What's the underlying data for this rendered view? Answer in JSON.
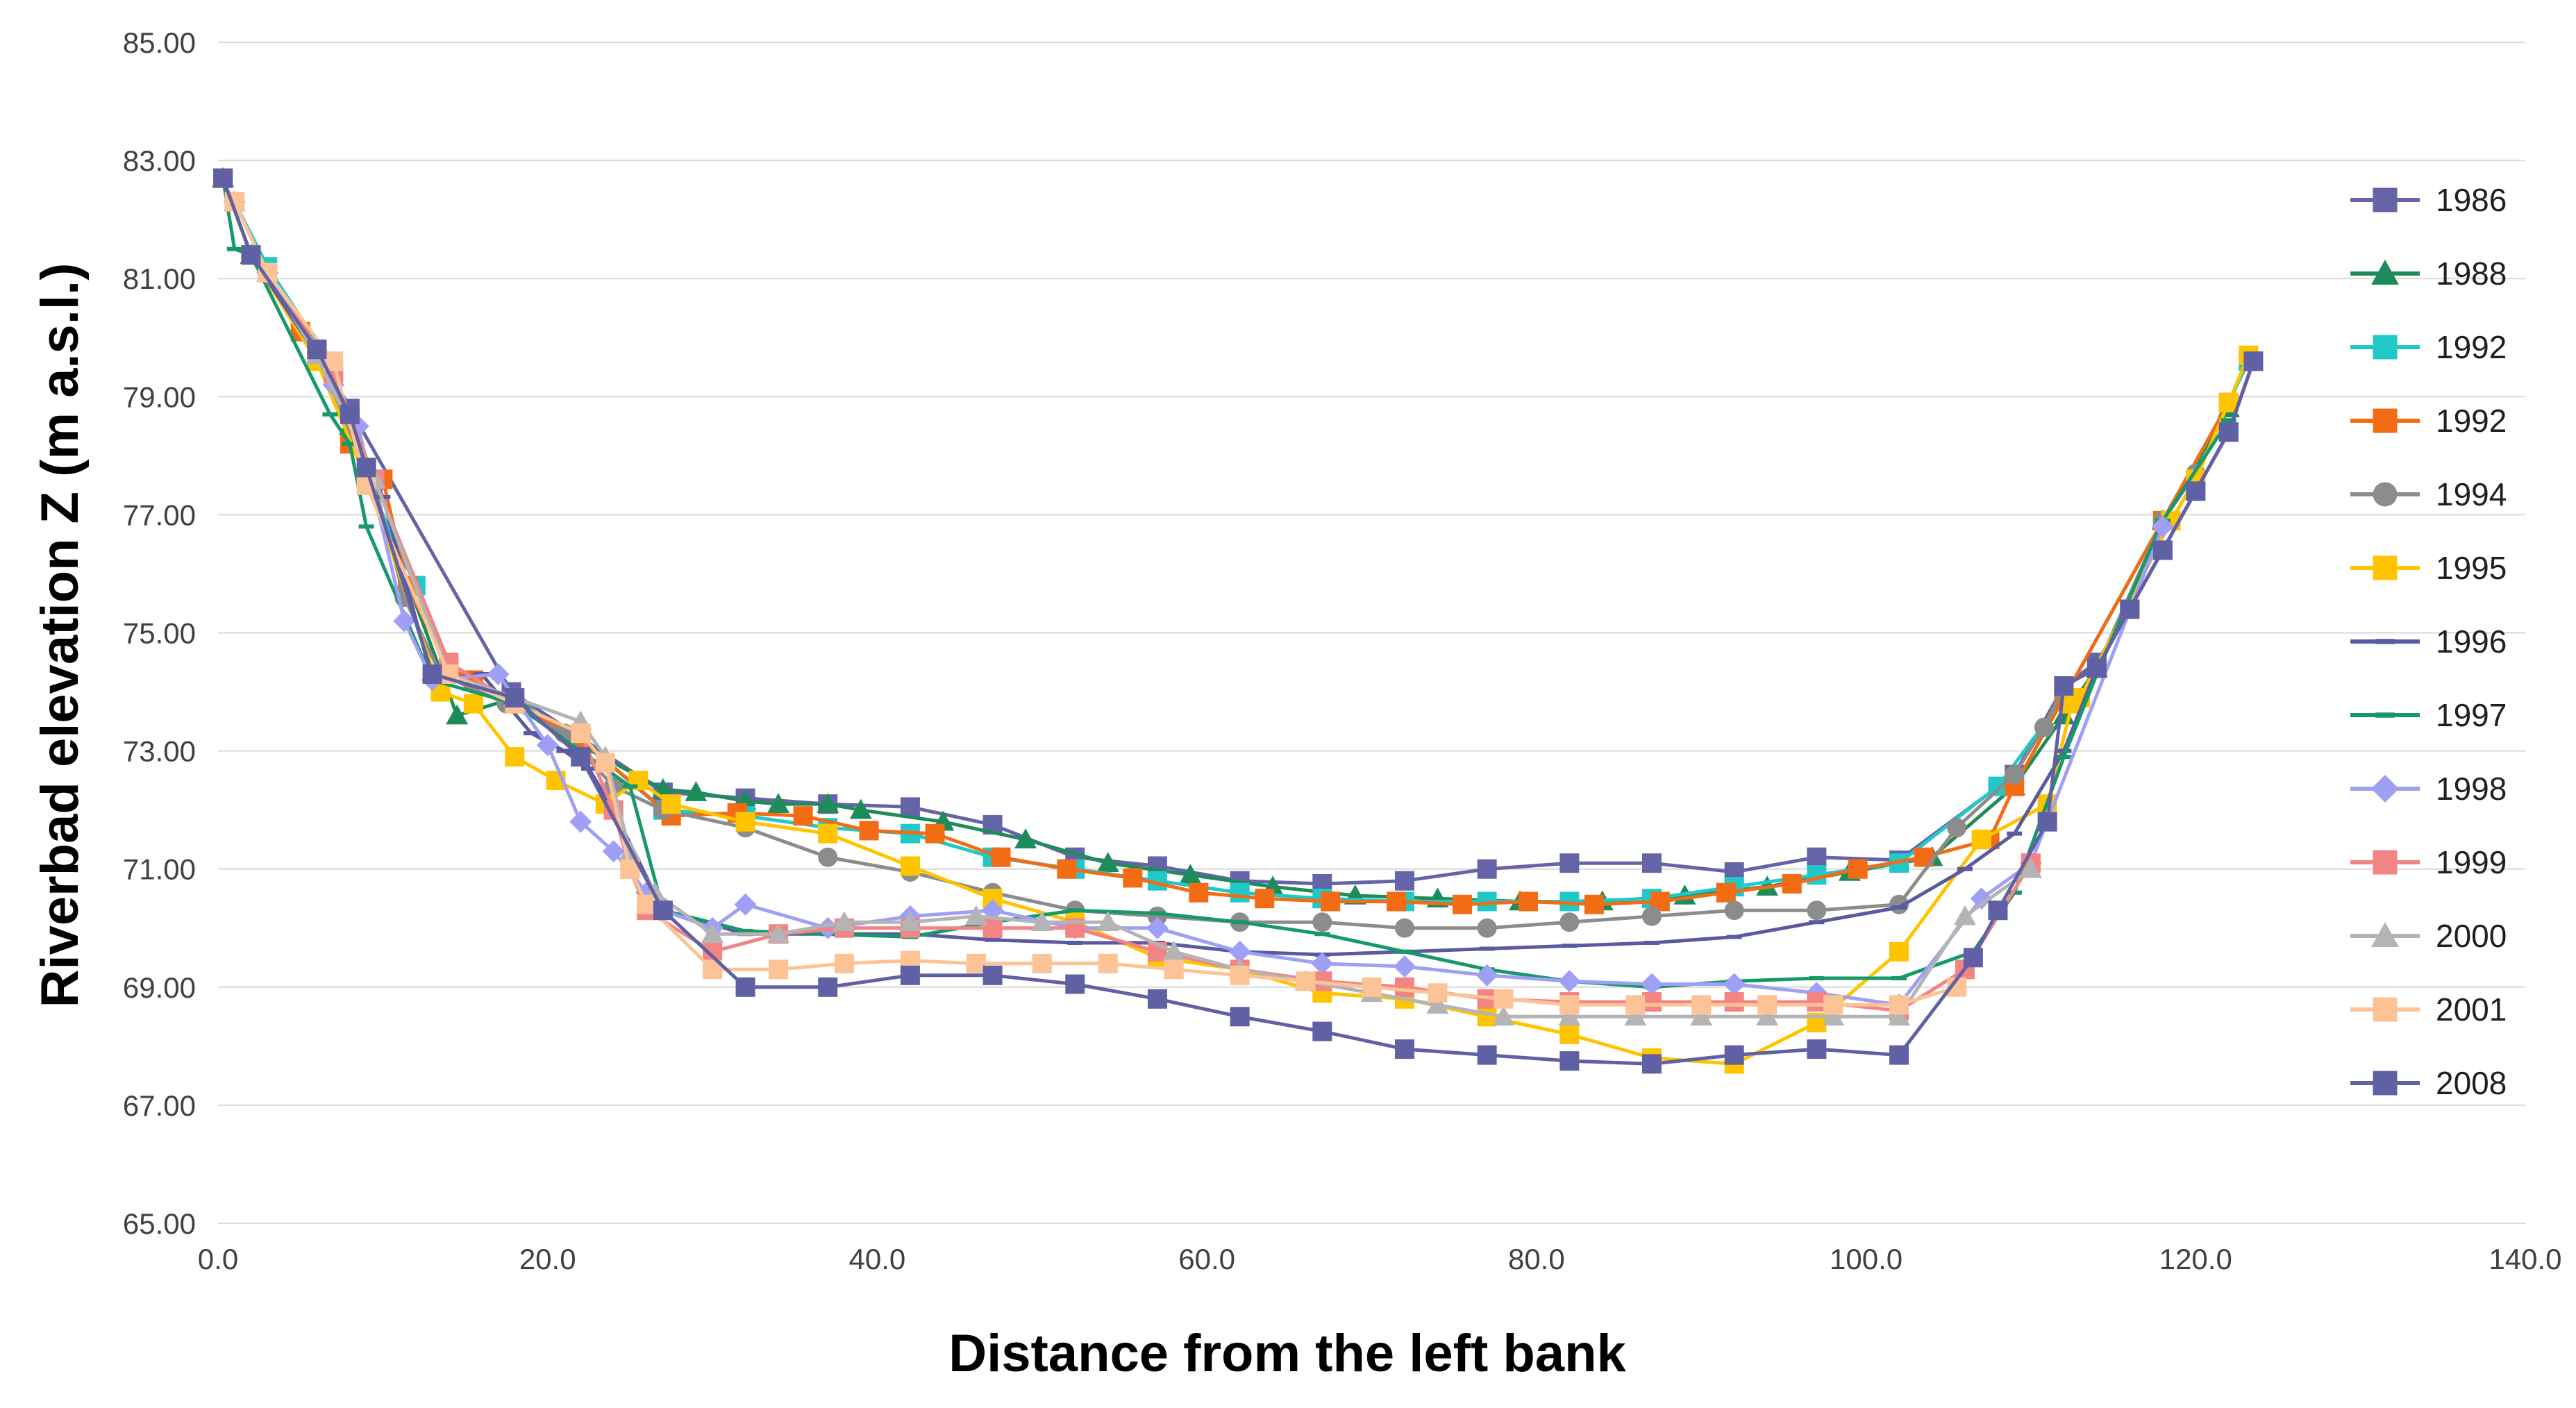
{
  "chart_data": {
    "type": "line",
    "title": "",
    "xlabel": "Distance from the left bank",
    "ylabel": "Riverbad elevation Z (m a.s.l.)",
    "xlim": [
      0,
      140
    ],
    "ylim": [
      65,
      85
    ],
    "x_ticks": [
      0,
      20,
      40,
      60,
      80,
      100,
      120,
      140
    ],
    "x_tick_labels": [
      "0.0",
      "20.0",
      "40.0",
      "60.0",
      "80.0",
      "100.0",
      "120.0",
      "140.0"
    ],
    "y_ticks": [
      65,
      67,
      69,
      71,
      73,
      75,
      77,
      79,
      81,
      83,
      85
    ],
    "y_tick_labels": [
      "65.00",
      "67.00",
      "69.00",
      "71.00",
      "73.00",
      "75.00",
      "77.00",
      "79.00",
      "81.00",
      "83.00",
      "85.00"
    ],
    "grid": "horizontal",
    "legend_position": "right",
    "series": [
      {
        "name": "1986",
        "color": "#6464a6",
        "marker": "square",
        "x": [
          0.3,
          2,
          6,
          8,
          17.8,
          27,
          32,
          37,
          42,
          47,
          52,
          57,
          62,
          67,
          72,
          77,
          82,
          87,
          92,
          97,
          102,
          109,
          112,
          114,
          116,
          118,
          120,
          122,
          123.5
        ],
        "y": [
          82.7,
          81.4,
          79.8,
          78.8,
          74,
          72.3,
          72.2,
          72.1,
          72.05,
          71.75,
          71.2,
          71.05,
          70.8,
          70.75,
          70.8,
          71,
          71.1,
          71.1,
          70.95,
          71.2,
          71.15,
          72.6,
          74.1,
          74.5,
          75.4,
          76.4,
          77.4,
          78.4,
          79.6
        ]
      },
      {
        "name": "1988",
        "color": "#1e8c5a",
        "marker": "triangle",
        "x": [
          0.3,
          2,
          6,
          8,
          14.5,
          18,
          22,
          27,
          29,
          32,
          34,
          37,
          39,
          44,
          49,
          54,
          59,
          64,
          69,
          74,
          79,
          84,
          89,
          94,
          99,
          104,
          109,
          112,
          114,
          118,
          122
        ],
        "y": [
          82.7,
          81.4,
          79.7,
          78.5,
          73.6,
          73.9,
          73.1,
          72.35,
          72.3,
          72.15,
          72.1,
          72.1,
          72.0,
          71.8,
          71.5,
          71.1,
          70.9,
          70.7,
          70.55,
          70.5,
          70.45,
          70.45,
          70.55,
          70.7,
          70.95,
          71.2,
          72.4,
          73.6,
          74.4,
          76.9,
          78.8
        ]
      },
      {
        "name": "1992",
        "color": "#22c8c8",
        "marker": "square",
        "x": [
          1,
          3,
          7,
          9,
          12,
          14,
          18,
          22,
          27,
          32,
          37,
          42,
          47,
          52,
          57,
          62,
          67,
          72,
          77,
          82,
          87,
          92,
          97,
          102,
          108,
          112,
          118,
          122,
          123.2
        ],
        "y": [
          82.3,
          81.2,
          79.5,
          77.6,
          75.8,
          74.3,
          73.8,
          73.2,
          72,
          71.9,
          71.7,
          71.6,
          71.2,
          71,
          70.8,
          70.6,
          70.5,
          70.45,
          70.45,
          70.45,
          70.5,
          70.7,
          70.9,
          71.1,
          72.4,
          73.9,
          76.9,
          78.9,
          79.6
        ]
      },
      {
        "name": "1992",
        "color": "#f26c15",
        "marker": "square",
        "x": [
          0.3,
          2,
          5,
          7,
          8,
          10,
          11.5,
          14,
          15.5,
          18,
          22,
          27.5,
          31.5,
          35.5,
          39.5,
          43.5,
          47.5,
          51.5,
          55.5,
          59.5,
          63.5,
          67.5,
          71.5,
          75.5,
          79.5,
          83.5,
          87.5,
          91.5,
          95.5,
          99.5,
          103.5,
          107.5,
          109,
          112,
          118,
          122
        ],
        "y": [
          82.7,
          81.4,
          80.1,
          79.4,
          78.2,
          77.6,
          75.8,
          74.4,
          74.2,
          73.8,
          73.2,
          71.9,
          71.95,
          71.9,
          71.65,
          71.6,
          71.2,
          71.0,
          70.85,
          70.6,
          70.5,
          70.45,
          70.45,
          70.4,
          70.45,
          70.4,
          70.45,
          70.6,
          70.75,
          71.0,
          71.2,
          71.5,
          72.4,
          73.9,
          76.9,
          78.9
        ]
      },
      {
        "name": "1994",
        "color": "#8c8c8c",
        "marker": "circle",
        "x": [
          0.3,
          2,
          6,
          9.5,
          11.3,
          13.5,
          17.5,
          21,
          24,
          27,
          32,
          37,
          42,
          47,
          52,
          57,
          62,
          67,
          72,
          77,
          82,
          87,
          92,
          97,
          102,
          105.5,
          109,
          110.8,
          112,
          114,
          118,
          120
        ],
        "y": [
          82.7,
          81.4,
          79.6,
          77.5,
          75.6,
          74.3,
          73.8,
          73.3,
          72.4,
          72.0,
          71.7,
          71.2,
          70.95,
          70.6,
          70.3,
          70.2,
          70.1,
          70.1,
          70.0,
          70.0,
          70.1,
          70.2,
          70.3,
          70.3,
          70.4,
          71.7,
          72.6,
          73.4,
          74.1,
          74.4,
          76.9,
          77.7
        ]
      },
      {
        "name": "1995",
        "color": "#ffc400",
        "marker": "square",
        "x": [
          0.3,
          2,
          6,
          9,
          13.5,
          15.5,
          18,
          20.5,
          23.5,
          25.5,
          27.5,
          32,
          37,
          42,
          47,
          52,
          57,
          62,
          67,
          72,
          77,
          82,
          87,
          92,
          97,
          102,
          107,
          111,
          112.5,
          113,
          118.5,
          120,
          122,
          123.2
        ],
        "y": [
          82.7,
          81.4,
          79.6,
          77.6,
          74.0,
          73.8,
          72.9,
          72.5,
          72.1,
          72.5,
          72.1,
          71.8,
          71.6,
          71.05,
          70.5,
          70.1,
          69.5,
          69.3,
          68.9,
          68.8,
          68.5,
          68.2,
          67.8,
          67.7,
          68.4,
          69.6,
          71.5,
          72.1,
          73.8,
          73.9,
          76.9,
          77.6,
          78.9,
          79.7
        ]
      },
      {
        "name": "1996",
        "color": "#5a5aa0",
        "marker": "dash",
        "x": [
          0.3,
          2,
          6,
          10,
          13,
          16,
          19,
          21,
          22.5,
          24,
          27,
          32,
          37,
          42,
          47,
          52,
          57,
          62,
          67,
          72,
          77,
          82,
          87,
          92,
          97,
          102,
          106,
          109,
          112,
          114,
          118,
          122,
          123.5
        ],
        "y": [
          82.7,
          81.4,
          79.7,
          77.3,
          74.2,
          74.3,
          73.3,
          73.0,
          72.7,
          72.0,
          70.3,
          69.9,
          69.9,
          69.9,
          69.8,
          69.75,
          69.75,
          69.6,
          69.55,
          69.6,
          69.65,
          69.7,
          69.75,
          69.85,
          70.1,
          70.35,
          71.0,
          71.6,
          73.0,
          74.4,
          76.4,
          78.4,
          79.6
        ]
      },
      {
        "name": "1997",
        "color": "#16996a",
        "marker": "dash",
        "x": [
          0.3,
          1,
          2,
          6.8,
          8,
          9,
          13,
          18,
          22,
          25,
          27,
          32,
          37,
          42,
          47,
          52,
          57,
          62,
          67,
          72,
          77,
          82,
          87,
          92,
          97,
          102,
          106.5,
          109,
          112,
          114,
          118,
          122
        ],
        "y": [
          82.7,
          81.5,
          81.4,
          78.7,
          78.2,
          76.8,
          74.2,
          73.8,
          73.0,
          72.4,
          70.3,
          69.95,
          69.9,
          69.85,
          70.1,
          70.3,
          70.25,
          70.1,
          69.9,
          69.6,
          69.3,
          69.1,
          69.0,
          69.1,
          69.15,
          69.15,
          69.6,
          70.6,
          72.9,
          74.3,
          76.9,
          78.6
        ]
      },
      {
        "name": "1998",
        "color": "#9f9ff5",
        "marker": "diamond",
        "x": [
          1,
          3,
          7,
          8.5,
          11.3,
          13,
          17,
          20,
          22,
          24,
          26,
          27,
          30,
          32,
          37,
          42,
          47,
          52,
          57,
          62,
          67,
          72,
          77,
          82,
          87,
          92,
          97,
          102,
          107,
          110,
          118
        ],
        "y": [
          82.3,
          81.1,
          79.2,
          78.5,
          75.2,
          74.2,
          74.3,
          73.1,
          71.8,
          71.3,
          70.6,
          70.3,
          70.0,
          70.4,
          70.0,
          70.2,
          70.3,
          70.0,
          70.0,
          69.6,
          69.4,
          69.35,
          69.2,
          69.1,
          69.05,
          69.05,
          68.9,
          68.7,
          70.5,
          71.1,
          76.8
        ]
      },
      {
        "name": "1999",
        "color": "#f28484",
        "marker": "square",
        "x": [
          1,
          3,
          7,
          9.5,
          14,
          18,
          22,
          24,
          25,
          26,
          30,
          34,
          38,
          42,
          47,
          52,
          57,
          62,
          67,
          72,
          77,
          82,
          87,
          92,
          97,
          102,
          106,
          110
        ],
        "y": [
          82.3,
          81.1,
          79.4,
          77.6,
          74.5,
          73.8,
          73.3,
          72.0,
          71.0,
          70.3,
          69.6,
          69.9,
          70.0,
          70.0,
          70.0,
          70.0,
          69.6,
          69.3,
          69.1,
          69.0,
          68.8,
          68.75,
          68.75,
          68.75,
          68.75,
          68.6,
          69.3,
          71.1
        ]
      },
      {
        "name": "2000",
        "color": "#b4b4b4",
        "marker": "triangle",
        "x": [
          1,
          3,
          6,
          9.5,
          14,
          18,
          22,
          23.5,
          25,
          26.5,
          30,
          34,
          38,
          42,
          46,
          50,
          54,
          58,
          62,
          66,
          70,
          74,
          78,
          82,
          86,
          90,
          94,
          98,
          102,
          106,
          110
        ],
        "y": [
          82.3,
          81.1,
          79.7,
          77.6,
          74.3,
          73.9,
          73.5,
          72.9,
          71.3,
          70.6,
          69.9,
          69.9,
          70.1,
          70.1,
          70.2,
          70.1,
          70.1,
          69.6,
          69.3,
          69.1,
          68.9,
          68.7,
          68.5,
          68.5,
          68.5,
          68.5,
          68.5,
          68.5,
          68.5,
          70.2,
          71.0
        ]
      },
      {
        "name": "2001",
        "color": "#fbc396",
        "marker": "square",
        "x": [
          1,
          3,
          7,
          9,
          14,
          18,
          22,
          23.5,
          25,
          26,
          30,
          34,
          38,
          42,
          46,
          50,
          54,
          58,
          62,
          66,
          70,
          74,
          78,
          82,
          86,
          90,
          94,
          98,
          102,
          105.5
        ],
        "y": [
          82.3,
          81.1,
          79.6,
          77.5,
          74.3,
          73.8,
          73.3,
          72.8,
          71.0,
          70.4,
          69.3,
          69.3,
          69.4,
          69.45,
          69.4,
          69.4,
          69.4,
          69.3,
          69.2,
          69.1,
          69.0,
          68.9,
          68.8,
          68.7,
          68.7,
          68.7,
          68.7,
          68.7,
          68.7,
          69.0
        ]
      },
      {
        "name": "2008",
        "color": "#6060a4",
        "marker": "square",
        "x": [
          0.3,
          2,
          6,
          8,
          9,
          13,
          18,
          22,
          27,
          32,
          37,
          42,
          47,
          52,
          57,
          62,
          67,
          72,
          77,
          82,
          87,
          92,
          97,
          102,
          106.5,
          108,
          111,
          112,
          114,
          116,
          118,
          120,
          122,
          123.5
        ],
        "y": [
          82.7,
          81.4,
          79.8,
          78.7,
          77.8,
          74.3,
          73.9,
          72.9,
          70.3,
          69.0,
          69.0,
          69.2,
          69.2,
          69.05,
          68.8,
          68.5,
          68.25,
          67.95,
          67.85,
          67.75,
          67.7,
          67.85,
          67.95,
          67.85,
          69.5,
          70.3,
          71.8,
          74.1,
          74.4,
          75.4,
          76.4,
          77.4,
          78.4,
          79.6
        ]
      }
    ]
  }
}
